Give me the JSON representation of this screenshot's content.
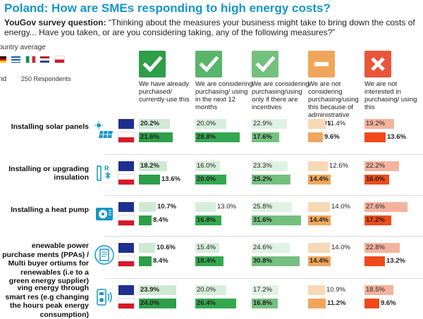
{
  "header": {
    "title": "Poland: How are SMEs responding to high energy costs?",
    "question_prefix": "YouGov survey question:",
    "question_text": " “Thinking about the measures your business might take to bring down the costs of energy... Have you taken, or are you considering taking, any of the following measures?”",
    "country_average": "ountry average",
    "legend_prefix": "nd",
    "respondents": "250 Respondents"
  },
  "colors": {
    "purchased": "#2e9e48",
    "considering_12m": "#58b56b",
    "considering_incentives": "#74c07f",
    "barriers": "#f0a65a",
    "not_interested": "#e8553a",
    "eu_blue": "#1f2f8f",
    "pl_red": "#d7182a"
  },
  "chart_data": {
    "type": "bar",
    "title": "Poland: How are SMEs responding to high energy costs?",
    "groups": [
      "Country average",
      "Poland"
    ],
    "columns": [
      {
        "key": "purchased",
        "icon": "check-icon",
        "label": "We have already purchased/ currently use this"
      },
      {
        "key": "considering_12m",
        "icon": "check-icon",
        "label": "We are considering purchasing/ using in the next 12 months"
      },
      {
        "key": "considering_incentives",
        "icon": "check-icon",
        "label": "We are considering purchasing/using only if there are incentives"
      },
      {
        "key": "barriers",
        "icon": "minus-icon",
        "label": "We are not considering purchasing/using this because of administrative barriers"
      },
      {
        "key": "not_interested",
        "icon": "cross-icon",
        "label": "We are not interested in purchasing/ using this"
      }
    ],
    "measures": [
      {
        "label": "Installing solar panels",
        "icon": "solar-panel-icon",
        "avg": [
          20.2,
          20.0,
          22.9,
          11.4,
          19.2
        ],
        "pl": [
          21.6,
          28.8,
          17.6,
          9.6,
          13.6
        ],
        "avg_text": [
          "20.2%",
          "20.0%",
          "22.9%",
          "11.4%",
          "19.2%"
        ],
        "pl_text": [
          "21.6%",
          "28.8%",
          "17.6%",
          "9.6%",
          "13.6%"
        ]
      },
      {
        "label": "Installing or upgrading insulation",
        "icon": "insulation-icon",
        "avg": [
          18.2,
          16.0,
          23.3,
          12.6,
          22.2
        ],
        "pl": [
          13.6,
          20.0,
          25.2,
          14.4,
          16.0
        ],
        "avg_text": [
          "18.2%",
          "16.0%",
          "23.3%",
          "12.6%",
          "22.2%"
        ],
        "pl_text": [
          "13.6%",
          "20.0%",
          "25.2%",
          "14.4%",
          "16.0%"
        ]
      },
      {
        "label": "Installing a heat pump",
        "icon": "heat-pump-icon",
        "avg": [
          10.7,
          13.0,
          25.8,
          14.0,
          27.6
        ],
        "pl": [
          8.4,
          16.8,
          31.6,
          14.4,
          17.2
        ],
        "avg_text": [
          "10.7%",
          "13.0%",
          "25.8%",
          "14.0%",
          "27.6%"
        ],
        "pl_text": [
          "8.4%",
          "16.8%",
          "31.6%",
          "14.4%",
          "17.2%"
        ]
      },
      {
        "label": "enewable power purchase ments (PPAs) / Multi buyer ortiums for renewables (i.e to a green energy supplier)",
        "icon": "document-icon",
        "avg": [
          10.6,
          15.4,
          24.6,
          14.0,
          22.8
        ],
        "pl": [
          8.4,
          18.4,
          30.8,
          14.4,
          13.2
        ],
        "avg_text": [
          "10.6%",
          "15.4%",
          "24.6%",
          "14.0%",
          "22.8%"
        ],
        "pl_text": [
          "8.4%",
          "18.4%",
          "30.8%",
          "14.4%",
          "13.2%"
        ]
      },
      {
        "label": "ving energy through smart res (e.g changing the hours peak energy consumption)",
        "icon": "smart-meter-icon",
        "avg": [
          23.9,
          20.0,
          17.2,
          10.9,
          18.5
        ],
        "pl": [
          24.0,
          26.4,
          16.8,
          11.2,
          9.6
        ],
        "avg_text": [
          "23.9%",
          "20.0%",
          "17.2%",
          "10.9%",
          "18.5%"
        ],
        "pl_text": [
          "24.0%",
          "26.4%",
          "16.8%",
          "11.2%",
          "9.6%"
        ]
      }
    ]
  }
}
